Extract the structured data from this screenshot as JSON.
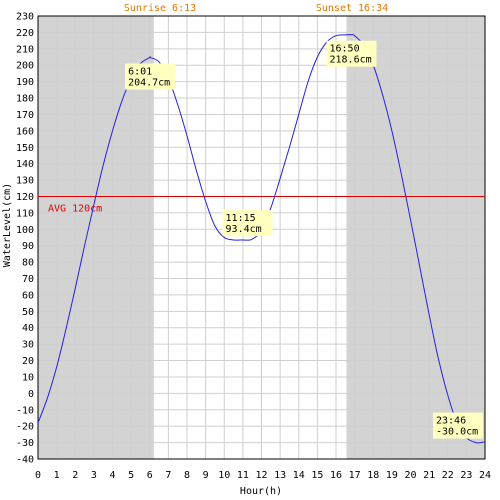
{
  "chart_data": {
    "type": "line",
    "xlabel": "Hour(h)",
    "ylabel": "WaterLevel(cm)",
    "xlim": [
      0,
      24
    ],
    "ylim": [
      -40,
      230
    ],
    "x_ticks": [
      0,
      1,
      2,
      3,
      4,
      5,
      6,
      7,
      8,
      9,
      10,
      11,
      12,
      13,
      14,
      15,
      16,
      17,
      18,
      19,
      20,
      21,
      22,
      23,
      24
    ],
    "y_ticks": [
      -40,
      -30,
      -20,
      -10,
      0,
      10,
      20,
      30,
      40,
      50,
      60,
      70,
      80,
      90,
      100,
      110,
      120,
      130,
      140,
      150,
      160,
      170,
      180,
      190,
      200,
      210,
      220,
      230
    ],
    "grid": true,
    "sunrise_label": "Sunrise 6:13",
    "sunset_label": "Sunset 16:34",
    "night_periods": [
      [
        0,
        6.217
      ],
      [
        16.567,
        24
      ]
    ],
    "average": {
      "label": "AVG 120cm",
      "value": 120
    },
    "series": [
      {
        "x": [
          0,
          0.5,
          1,
          1.5,
          2,
          2.5,
          3,
          3.5,
          4,
          4.5,
          5,
          5.5,
          6,
          6.017,
          6.5,
          7,
          7.5,
          8,
          8.5,
          9,
          9.5,
          10,
          10.5,
          11,
          11.25,
          11.5,
          12,
          12.5,
          13,
          13.5,
          14,
          14.5,
          15,
          15.5,
          16,
          16.5,
          16.833,
          17,
          17.5,
          18,
          18.5,
          19,
          19.5,
          20,
          20.5,
          21,
          21.5,
          22,
          22.5,
          23,
          23.5,
          23.767,
          24
        ],
        "values": [
          -18,
          -3,
          16,
          39,
          64,
          90,
          115,
          139,
          160,
          178,
          192,
          201,
          204.7,
          204.7,
          202,
          192,
          176,
          157,
          136,
          117,
          102,
          95,
          93.5,
          93.5,
          93.4,
          94,
          99,
          113,
          131,
          150,
          170,
          190,
          205,
          214,
          218,
          218.5,
          218.6,
          218,
          212,
          200,
          182,
          160,
          134,
          106,
          77,
          48,
          21,
          -1,
          -18,
          -27,
          -30,
          -30,
          -29.5
        ]
      }
    ],
    "annotations": [
      {
        "time": "6:01",
        "level": "204.7cm",
        "x": 6.017,
        "y": 204.7
      },
      {
        "time": "11:15",
        "level": "93.4cm",
        "x": 11.25,
        "y": 93.4
      },
      {
        "time": "16:50",
        "level": "218.6cm",
        "x": 16.833,
        "y": 218.6
      },
      {
        "time": "23:46",
        "level": "-30.0cm",
        "x": 23.767,
        "y": -30
      }
    ],
    "colors": {
      "line": "#2222dd",
      "avg": "#dd0000",
      "night": "#d3d3d3",
      "grid": "#cfcfcf",
      "annotation_bg": "#ffffc0",
      "sun_text": "#e07800"
    }
  }
}
